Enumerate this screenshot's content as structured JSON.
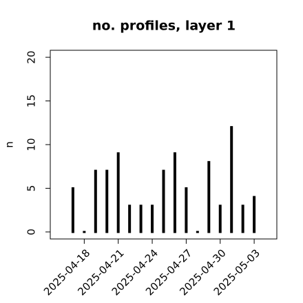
{
  "chart_data": {
    "type": "bar",
    "title": "no. profiles, layer 1",
    "y_label": "n",
    "x": [
      "2025-04-17",
      "2025-04-18",
      "2025-04-19",
      "2025-04-20",
      "2025-04-21",
      "2025-04-22",
      "2025-04-23",
      "2025-04-24",
      "2025-04-25",
      "2025-04-26",
      "2025-04-27",
      "2025-04-28",
      "2025-04-29",
      "2025-04-30",
      "2025-05-01",
      "2025-05-02",
      "2025-05-03"
    ],
    "values": [
      5,
      0,
      7,
      7,
      9,
      3,
      3,
      3,
      7,
      9,
      5,
      0,
      8,
      3,
      12,
      3,
      4
    ],
    "color": "#000000",
    "xlim": [
      "2025-04-15",
      "2025-05-05"
    ],
    "xticks": [
      "2025-04-18",
      "2025-04-21",
      "2025-04-24",
      "2025-04-27",
      "2025-04-30",
      "2025-05-03"
    ],
    "xtick_colors": [
      "#000000",
      "#000000",
      "#228b22",
      "#000000",
      "#000000",
      "#000000"
    ],
    "ylim": [
      -0.8,
      20.8
    ],
    "yticks": [
      0,
      5,
      10,
      15,
      20
    ]
  }
}
